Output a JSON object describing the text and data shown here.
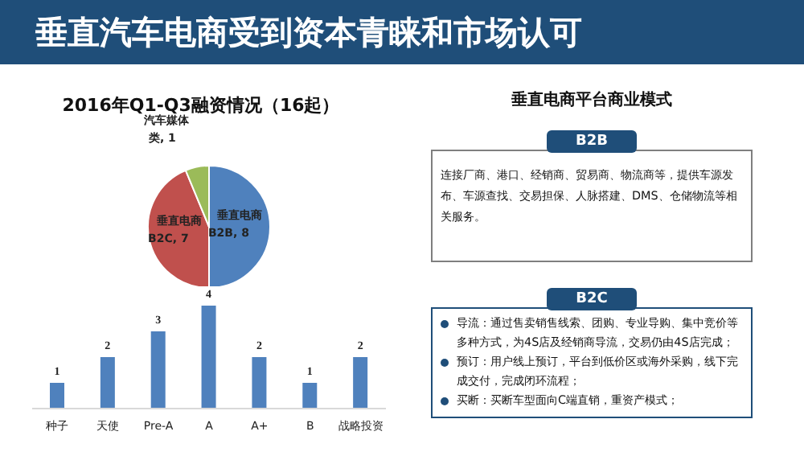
{
  "chart_data": [
    {
      "type": "pie",
      "title": "垂直汽车电商受到资本青睐和市场认可",
      "subtitle": "2016年Q1-Q3融资情况（16起）",
      "categories": [
        "垂直电商B2B",
        "垂直电商B2C",
        "汽车媒体类"
      ],
      "values": [
        8,
        7,
        1
      ],
      "value_labels": [
        ", 8",
        ", 7",
        ", 1"
      ],
      "colors": [
        "#4f81bd",
        "#c0504d",
        "#9bbb59"
      ]
    },
    {
      "type": "bar",
      "categories": [
        "种子",
        "天使",
        "Pre-A",
        "A",
        "A+",
        "B",
        "战略投资"
      ],
      "values": [
        1,
        2,
        3,
        4,
        2,
        1,
        2
      ],
      "color": "#4f81bd",
      "data_labels": true,
      "tick_labels": "x"
    },
    {
      "type": "other",
      "title": "垂直电商平台商业模式",
      "annotations": [
        "B2B",
        "连接厂商、港口、经销商、贸易商、物流商等，提供车源发布、车源查找、交易担保、人脉搭建、DMS、仓储物流等相关服务。",
        "B2C",
        "导流：通过售卖销售线索、团购、专业导购、集中竞价等多种方式，为4S店及经销商导流，交易仍由4S店完成；",
        "预订：用户线上预订，平台到低价区或海外采购，线下完成交付，完成闭环流程；",
        "买断：买断车型面向C端直销，重资产模式；"
      ]
    }
  ]
}
